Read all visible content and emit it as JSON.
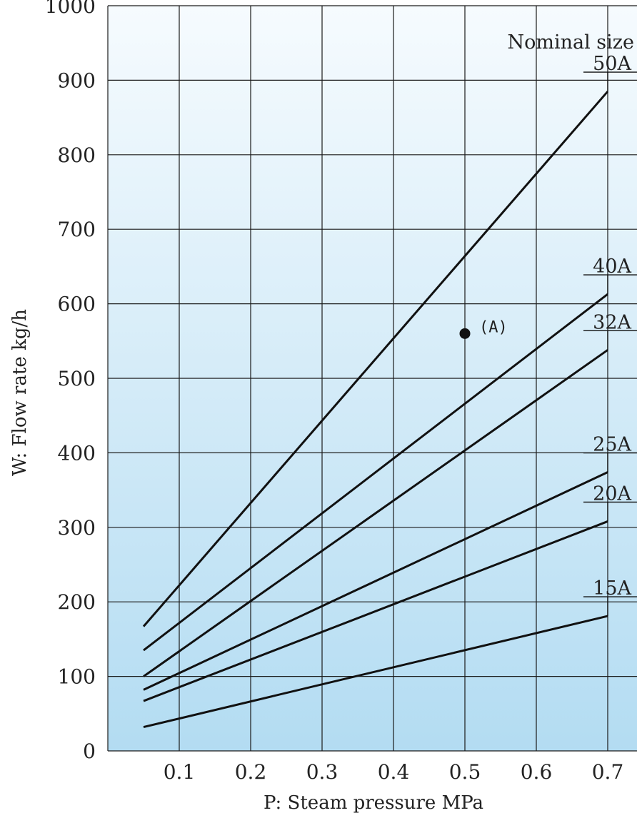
{
  "chart_data": {
    "type": "line",
    "title": "",
    "xlabel": "P: Steam pressure MPa",
    "ylabel": "W: Flow rate kg/h",
    "xlim": [
      0,
      0.7
    ],
    "ylim": [
      0,
      1000
    ],
    "x_ticks": [
      0.1,
      0.2,
      0.3,
      0.4,
      0.5,
      0.6,
      0.7
    ],
    "x_tick_labels": [
      "0.1",
      "0.2",
      "0.3",
      "0.4",
      "0.5",
      "0.6",
      "0.7"
    ],
    "y_ticks": [
      0,
      100,
      200,
      300,
      400,
      500,
      600,
      700,
      800,
      900,
      1000
    ],
    "y_tick_labels": [
      "0",
      "100",
      "200",
      "300",
      "400",
      "500",
      "600",
      "700",
      "800",
      "900",
      "1000"
    ],
    "grid": true,
    "legend_title": "Nominal size",
    "series": [
      {
        "name": "50A",
        "x": [
          0.05,
          0.7
        ],
        "y": [
          167,
          885
        ]
      },
      {
        "name": "40A",
        "x": [
          0.05,
          0.7
        ],
        "y": [
          135,
          613
        ]
      },
      {
        "name": "32A",
        "x": [
          0.05,
          0.7
        ],
        "y": [
          100,
          538
        ]
      },
      {
        "name": "25A",
        "x": [
          0.05,
          0.7
        ],
        "y": [
          82,
          374
        ]
      },
      {
        "name": "20A",
        "x": [
          0.05,
          0.7
        ],
        "y": [
          67,
          308
        ]
      },
      {
        "name": "15A",
        "x": [
          0.05,
          0.7
        ],
        "y": [
          32,
          181
        ]
      }
    ],
    "annotations": [
      {
        "label": "(A)",
        "x": 0.5,
        "y": 560
      }
    ]
  }
}
